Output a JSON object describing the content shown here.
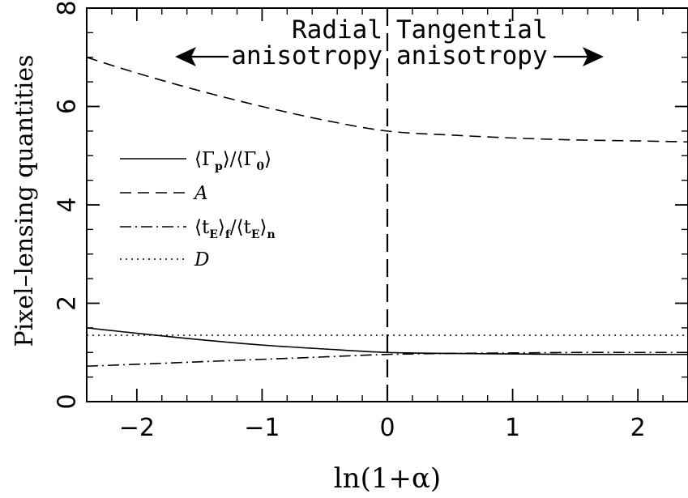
{
  "chart_data": {
    "type": "line",
    "xlabel": "ln(1+α)",
    "ylabel": "Pixel–lensing quantities",
    "xlim": [
      -2.4,
      2.4
    ],
    "ylim": [
      0,
      8
    ],
    "xticks": [
      -2,
      -1,
      0,
      1,
      2
    ],
    "xtick_labels": [
      "−2",
      "−1",
      "0",
      "1",
      "2"
    ],
    "yticks": [
      0,
      2,
      4,
      6,
      8
    ],
    "ytick_labels": [
      "0",
      "2",
      "4",
      "6",
      "8"
    ],
    "grid": false,
    "legend_position": "left-middle",
    "vline": {
      "x": 0,
      "style": "long-dash"
    },
    "annotations": {
      "left_line1": "Radial",
      "left_line2": "anisotropy",
      "right_line1": "Tangential",
      "right_line2": "anisotropy"
    },
    "legend": [
      {
        "key": "gamma",
        "style": "solid",
        "label": "⟨Γp⟩/⟨Γ0⟩"
      },
      {
        "key": "A",
        "style": "dashed",
        "label": "A"
      },
      {
        "key": "tE",
        "style": "dashdot",
        "label": "⟨tE⟩f/⟨tE⟩n"
      },
      {
        "key": "D",
        "style": "dotted",
        "label": "D"
      }
    ],
    "legend_parts": {
      "gamma_pre": "⟨Γ",
      "gamma_sub1": "p",
      "gamma_mid": "⟩/⟨Γ",
      "gamma_sub2": "0",
      "gamma_post": "⟩",
      "A": "A",
      "tE_pre": "⟨t",
      "tE_sub1": "E",
      "tE_mid1": "⟩",
      "tE_sub2": "f",
      "tE_mid2": "/⟨t",
      "tE_sub3": "E",
      "tE_mid3": "⟩",
      "tE_sub4": "n",
      "D": "D"
    },
    "series": [
      {
        "key": "gamma",
        "x": [
          -2.4,
          -2.0,
          -1.5,
          -1.0,
          -0.5,
          0.0,
          0.5,
          1.0,
          1.5,
          2.0,
          2.4
        ],
        "y": [
          1.5,
          1.39,
          1.26,
          1.15,
          1.07,
          1.0,
          0.98,
          0.97,
          0.96,
          0.96,
          0.96
        ]
      },
      {
        "key": "A",
        "x": [
          -2.4,
          -2.0,
          -1.5,
          -1.0,
          -0.5,
          0.0,
          0.5,
          1.0,
          1.5,
          2.0,
          2.4
        ],
        "y": [
          7.0,
          6.68,
          6.32,
          6.0,
          5.72,
          5.5,
          5.42,
          5.36,
          5.32,
          5.3,
          5.28
        ]
      },
      {
        "key": "tE",
        "x": [
          -2.4,
          -2.0,
          -1.5,
          -1.0,
          -0.5,
          0.0,
          0.5,
          1.0,
          1.5,
          2.0,
          2.4
        ],
        "y": [
          0.72,
          0.76,
          0.81,
          0.86,
          0.91,
          0.96,
          0.98,
          0.99,
          1.0,
          1.0,
          1.0
        ]
      },
      {
        "key": "D",
        "x": [
          -2.4,
          -1.0,
          0.0,
          1.0,
          2.4
        ],
        "y": [
          1.35,
          1.35,
          1.35,
          1.35,
          1.35
        ]
      }
    ]
  }
}
